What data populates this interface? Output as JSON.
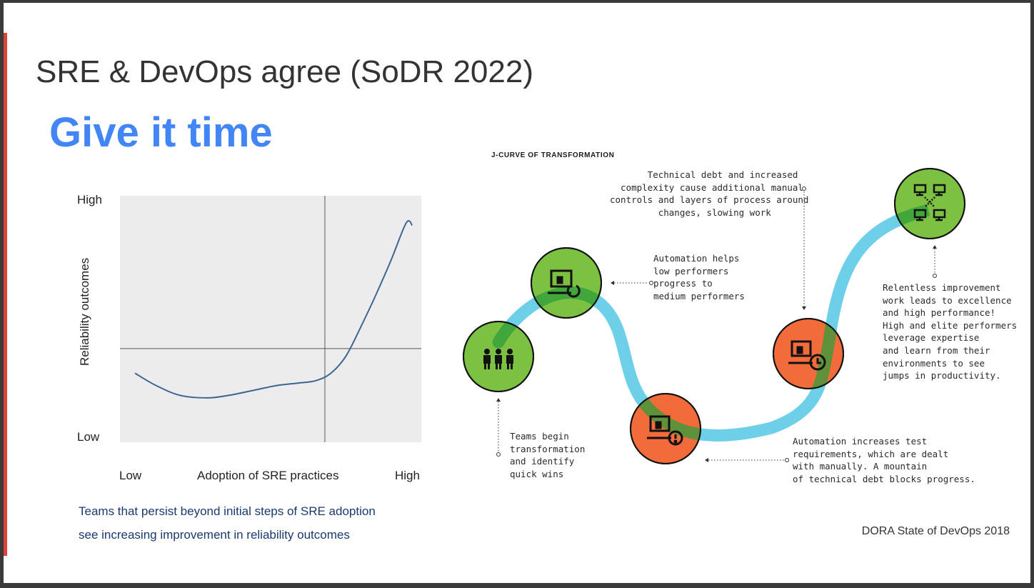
{
  "slide": {
    "title": "SRE & DevOps agree (SoDR 2022)",
    "subtitle": "Give it time",
    "caption_line1": "Teams that persist beyond initial steps of SRE adoption",
    "caption_line2": "see increasing improvement in reliability outcomes",
    "source": "DORA State of DevOps 2018",
    "accent_color": "#db4437",
    "subtitle_color": "#4285f4"
  },
  "chart_data": [
    {
      "type": "line",
      "title": "",
      "xlabel": "Adoption of SRE practices",
      "ylabel": "Reliability outcomes",
      "x_tick_labels": [
        "Low",
        "High"
      ],
      "y_tick_labels": [
        "Low",
        "High"
      ],
      "xlim": [
        0,
        1
      ],
      "ylim": [
        0,
        1
      ],
      "reference_lines": {
        "vertical_x": 0.68,
        "horizontal_y": 0.38
      },
      "grid": false,
      "line_color": "#3d6594",
      "background": "#ececec",
      "series": [
        {
          "x": [
            0.05,
            0.12,
            0.2,
            0.29,
            0.36,
            0.44,
            0.52,
            0.59,
            0.65,
            0.7,
            0.75,
            0.8,
            0.85,
            0.9,
            0.95,
            0.97
          ],
          "values": [
            0.28,
            0.23,
            0.19,
            0.18,
            0.19,
            0.21,
            0.23,
            0.24,
            0.25,
            0.28,
            0.35,
            0.47,
            0.6,
            0.74,
            0.89,
            0.88
          ]
        }
      ]
    },
    {
      "type": "diagram",
      "title": "J-CURVE OF TRANSFORMATION",
      "stages": [
        {
          "icon": "people-icon",
          "color": "#7cc142",
          "text": "Teams begin\ntransformation\nand identify\nquick wins"
        },
        {
          "icon": "laptop-refresh-icon",
          "color": "#7cc142",
          "text": "Automation helps\nlow performers\nprogress to\nmedium performers"
        },
        {
          "icon": "laptop-alert-icon",
          "color": "#f26b3a",
          "text": "Automation increases test\nrequirements, which are dealt\nwith manually. A mountain\nof technical debt blocks progress."
        },
        {
          "icon": "laptop-clock-icon",
          "color": "#f26b3a",
          "text": "       Technical debt and increased\n  complexity cause additional manual\ncontrols and layers of process around\n         changes, slowing work"
        },
        {
          "icon": "network-icon",
          "color": "#7cc142",
          "text": "Relentless improvement\nwork leads to excellence\nand high performance!\nHigh and elite performers\nleverage expertise\nand learn from their\nenvironments to see\njumps in productivity."
        }
      ],
      "curve_color": "#6dd0e8",
      "overlay_color": "#2e9e3b"
    }
  ]
}
